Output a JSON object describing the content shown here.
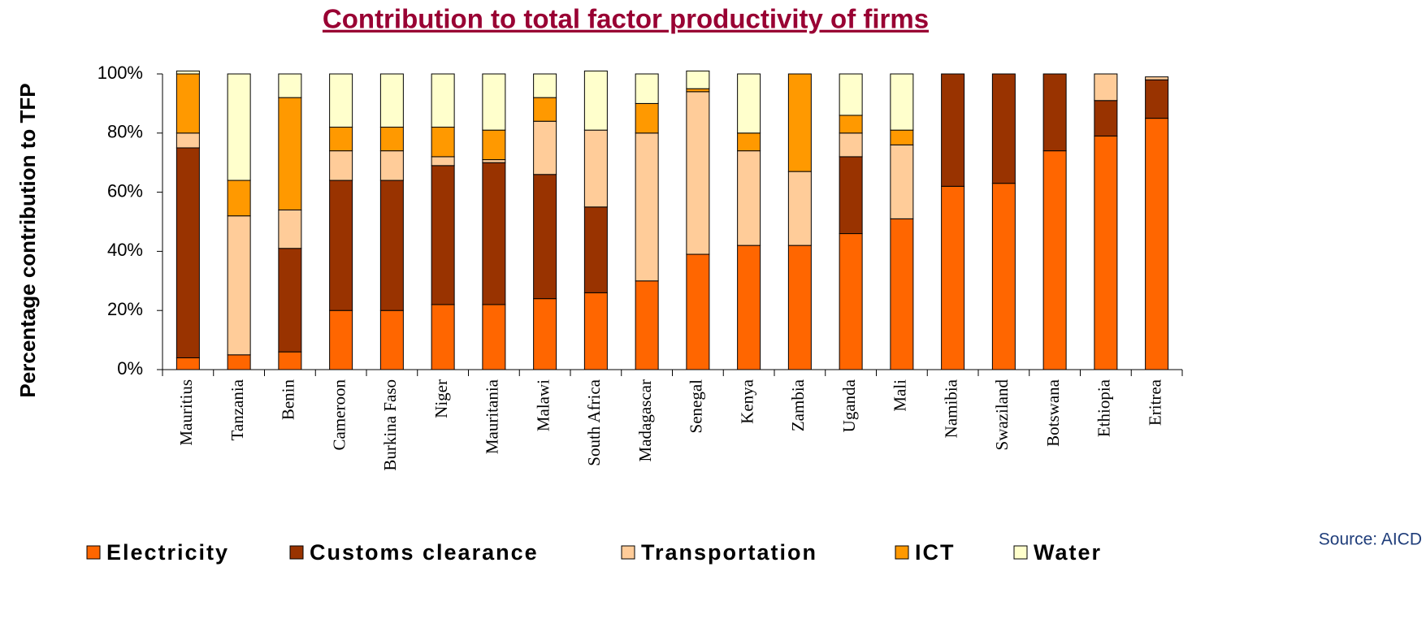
{
  "chart_data": {
    "type": "stacked_bar",
    "title": "Contribution to total factor productivity of firms",
    "y_label": "Percentage contribution to TFP",
    "source": "Source: AICD",
    "categories": [
      "Mauritius",
      "Tanzania",
      "Benin",
      "Cameroon",
      "Burkina Faso",
      "Niger",
      "Mauritania",
      "Malawi",
      "South Africa",
      "Madagascar",
      "Senegal",
      "Kenya",
      "Zambia",
      "Uganda",
      "Mali",
      "Namibia",
      "Swaziland",
      "Botswana",
      "Ethiopia",
      "Eritrea"
    ],
    "series": [
      {
        "name": "Electricity",
        "color": "#ff6600",
        "values": [
          4,
          5,
          6,
          20,
          20,
          22,
          22,
          24,
          26,
          30,
          39,
          42,
          42,
          46,
          51,
          62,
          63,
          74,
          79,
          85
        ]
      },
      {
        "name": "Customs clearance",
        "color": "#993300",
        "values": [
          71,
          0,
          35,
          44,
          44,
          47,
          48,
          42,
          29,
          0,
          0,
          0,
          0,
          26,
          0,
          38,
          37,
          26,
          12,
          13
        ]
      },
      {
        "name": "Transportation",
        "color": "#ffcc99",
        "values": [
          5,
          47,
          13,
          10,
          10,
          3,
          1,
          18,
          26,
          50,
          55,
          32,
          25,
          8,
          25,
          0,
          0,
          0,
          9,
          1
        ]
      },
      {
        "name": "ICT",
        "color": "#ff9900",
        "values": [
          20,
          12,
          38,
          8,
          8,
          10,
          10,
          8,
          0,
          10,
          1,
          6,
          33,
          6,
          5,
          0,
          0,
          0,
          0,
          0
        ]
      },
      {
        "name": "Water",
        "color": "#ffffcc",
        "values": [
          1,
          36,
          8,
          18,
          18,
          18,
          19,
          8,
          20,
          10,
          6,
          20,
          0,
          14,
          19,
          0,
          0,
          0,
          0,
          0
        ]
      }
    ],
    "ylim": [
      0,
      100
    ],
    "yticks": [
      {
        "value": 0,
        "label": "0%"
      },
      {
        "value": 20,
        "label": "20%"
      },
      {
        "value": 40,
        "label": "40%"
      },
      {
        "value": 60,
        "label": "60%"
      },
      {
        "value": 80,
        "label": "80%"
      },
      {
        "value": 100,
        "label": "100%"
      }
    ]
  }
}
